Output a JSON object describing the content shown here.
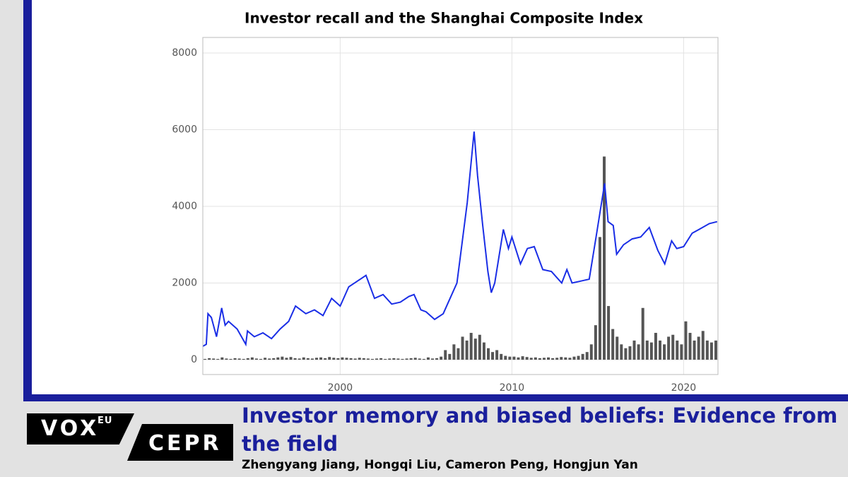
{
  "chart_data": {
    "type": "line",
    "title": "Investor recall and the Shanghai Composite Index",
    "xlim": [
      1992,
      2022
    ],
    "xticks": [
      2000,
      2010,
      2020
    ],
    "ylim": [
      -387,
      8406
    ],
    "yticks": [
      0,
      2000,
      4000,
      6000,
      8000
    ],
    "grid": true,
    "series": [
      {
        "type": "bar",
        "color": "#555555",
        "x": [
          1992.125,
          1992.375,
          1992.625,
          1992.875,
          1993.125,
          1993.375,
          1993.625,
          1993.875,
          1994.125,
          1994.375,
          1994.625,
          1994.875,
          1995.125,
          1995.375,
          1995.625,
          1995.875,
          1996.125,
          1996.375,
          1996.625,
          1996.875,
          1997.125,
          1997.375,
          1997.625,
          1997.875,
          1998.125,
          1998.375,
          1998.625,
          1998.875,
          1999.125,
          1999.375,
          1999.625,
          1999.875,
          2000.125,
          2000.375,
          2000.625,
          2000.875,
          2001.125,
          2001.375,
          2001.625,
          2001.875,
          2002.125,
          2002.375,
          2002.625,
          2002.875,
          2003.125,
          2003.375,
          2003.625,
          2003.875,
          2004.125,
          2004.375,
          2004.625,
          2004.875,
          2005.125,
          2005.375,
          2005.625,
          2005.875,
          2006.125,
          2006.375,
          2006.625,
          2006.875,
          2007.125,
          2007.375,
          2007.625,
          2007.875,
          2008.125,
          2008.375,
          2008.625,
          2008.875,
          2009.125,
          2009.375,
          2009.625,
          2009.875,
          2010.125,
          2010.375,
          2010.625,
          2010.875,
          2011.125,
          2011.375,
          2011.625,
          2011.875,
          2012.125,
          2012.375,
          2012.625,
          2012.875,
          2013.125,
          2013.375,
          2013.625,
          2013.875,
          2014.125,
          2014.375,
          2014.625,
          2014.875,
          2015.125,
          2015.375,
          2015.625,
          2015.875,
          2016.125,
          2016.375,
          2016.625,
          2016.875,
          2017.125,
          2017.375,
          2017.625,
          2017.875,
          2018.125,
          2018.375,
          2018.625,
          2018.875,
          2019.125,
          2019.375,
          2019.625,
          2019.875,
          2020.125,
          2020.375,
          2020.625,
          2020.875,
          2021.125,
          2021.375,
          2021.625,
          2021.875
        ],
        "values": [
          20,
          40,
          30,
          20,
          60,
          30,
          20,
          40,
          30,
          20,
          40,
          60,
          30,
          20,
          50,
          30,
          40,
          60,
          80,
          50,
          70,
          40,
          30,
          60,
          40,
          30,
          50,
          60,
          40,
          70,
          50,
          40,
          60,
          50,
          40,
          30,
          50,
          40,
          30,
          20,
          30,
          40,
          20,
          30,
          40,
          30,
          20,
          30,
          40,
          50,
          30,
          20,
          60,
          30,
          40,
          80,
          250,
          150,
          400,
          300,
          600,
          500,
          700,
          550,
          650,
          450,
          300,
          200,
          250,
          150,
          100,
          80,
          80,
          60,
          90,
          70,
          50,
          60,
          40,
          50,
          60,
          40,
          50,
          70,
          60,
          50,
          80,
          100,
          150,
          200,
          400,
          900,
          3200,
          5300,
          1400,
          800,
          600,
          400,
          300,
          350,
          500,
          400,
          1350,
          500,
          450,
          700,
          500,
          400,
          600,
          650,
          500,
          400,
          1000,
          700,
          500,
          600,
          750,
          500,
          450,
          500
        ]
      },
      {
        "type": "line",
        "color": "#1a2ee6",
        "x": [
          1992.0,
          1992.2,
          1992.3,
          1992.5,
          1992.8,
          1993.1,
          1993.3,
          1993.5,
          1994.0,
          1994.5,
          1994.6,
          1995.0,
          1995.5,
          1996.0,
          1996.5,
          1997.0,
          1997.4,
          1998.0,
          1998.5,
          1999.0,
          1999.5,
          2000.0,
          2000.5,
          2001.0,
          2001.5,
          2002.0,
          2002.5,
          2003.0,
          2003.5,
          2004.0,
          2004.3,
          2004.7,
          2005.0,
          2005.5,
          2006.0,
          2006.4,
          2006.8,
          2007.0,
          2007.4,
          2007.8,
          2008.0,
          2008.3,
          2008.6,
          2008.8,
          2009.0,
          2009.5,
          2009.8,
          2010.0,
          2010.5,
          2010.9,
          2011.3,
          2011.8,
          2012.3,
          2012.9,
          2013.2,
          2013.5,
          2014.0,
          2014.5,
          2014.9,
          2015.4,
          2015.6,
          2015.9,
          2016.1,
          2016.5,
          2017.0,
          2017.5,
          2018.0,
          2018.5,
          2018.9,
          2019.3,
          2019.6,
          2020.0,
          2020.5,
          2020.9,
          2021.5,
          2021.95
        ],
        "values": [
          350,
          400,
          1200,
          1100,
          600,
          1350,
          900,
          1000,
          800,
          400,
          750,
          600,
          700,
          550,
          800,
          1000,
          1400,
          1200,
          1300,
          1150,
          1600,
          1400,
          1900,
          2050,
          2200,
          1600,
          1700,
          1450,
          1500,
          1650,
          1700,
          1300,
          1250,
          1050,
          1200,
          1600,
          2000,
          2700,
          4100,
          5950,
          4800,
          3500,
          2300,
          1750,
          2000,
          3400,
          2900,
          3200,
          2500,
          2900,
          2950,
          2350,
          2300,
          2000,
          2350,
          2000,
          2050,
          2100,
          3200,
          4600,
          3600,
          3500,
          2750,
          3000,
          3150,
          3200,
          3450,
          2850,
          2500,
          3100,
          2900,
          2950,
          3300,
          3400,
          3550,
          3600
        ]
      }
    ]
  },
  "logo": {
    "vox": "VOX",
    "eu": "EU",
    "cepr": "CEPR"
  },
  "article": {
    "title": "Investor memory and biased beliefs: Evidence from the field",
    "authors": "Zhengyang Jiang, Hongqi Liu, Cameron Peng, Hongjun Yan"
  }
}
